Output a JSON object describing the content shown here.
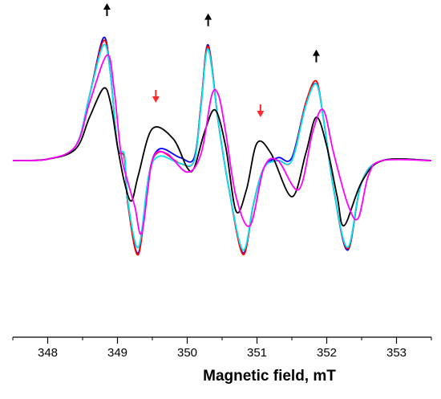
{
  "chart_data": {
    "type": "line",
    "title": "",
    "xlabel": "Magnetic field, mT",
    "ylabel": "",
    "xlim": [
      347.5,
      353.5
    ],
    "ylim": [
      -1.0,
      1.0
    ],
    "x_ticks": [
      348,
      349,
      350,
      351,
      352,
      353
    ],
    "y_axis_visible": false,
    "grid": false,
    "legend": "none",
    "series": [
      {
        "color": "#0000ff",
        "points": [
          [
            347.5,
            0.0
          ],
          [
            348.0,
            0.01
          ],
          [
            348.4,
            0.1
          ],
          [
            348.6,
            0.45
          ],
          [
            348.8,
            0.85
          ],
          [
            348.9,
            0.6
          ],
          [
            349.0,
            0.1
          ],
          [
            349.1,
            0.02
          ],
          [
            349.15,
            -0.3
          ],
          [
            349.3,
            -0.64
          ],
          [
            349.45,
            -0.1
          ],
          [
            349.6,
            0.08
          ],
          [
            349.9,
            0.02
          ],
          [
            350.1,
            0.02
          ],
          [
            350.2,
            0.4
          ],
          [
            350.3,
            0.8
          ],
          [
            350.45,
            0.25
          ],
          [
            350.6,
            -0.2
          ],
          [
            350.8,
            -0.64
          ],
          [
            350.95,
            -0.3
          ],
          [
            351.1,
            -0.05
          ],
          [
            351.3,
            0.02
          ],
          [
            351.5,
            0.02
          ],
          [
            351.7,
            0.4
          ],
          [
            351.85,
            0.53
          ],
          [
            351.95,
            0.3
          ],
          [
            352.1,
            -0.2
          ],
          [
            352.3,
            -0.62
          ],
          [
            352.5,
            -0.15
          ],
          [
            352.8,
            0.0
          ],
          [
            353.5,
            0.0
          ]
        ]
      },
      {
        "color": "#ff0000",
        "points": [
          [
            347.5,
            0.0
          ],
          [
            348.0,
            0.01
          ],
          [
            348.4,
            0.1
          ],
          [
            348.6,
            0.45
          ],
          [
            348.8,
            0.83
          ],
          [
            348.9,
            0.6
          ],
          [
            349.0,
            0.1
          ],
          [
            349.1,
            0.02
          ],
          [
            349.15,
            -0.3
          ],
          [
            349.3,
            -0.65
          ],
          [
            349.45,
            -0.1
          ],
          [
            349.6,
            0.06
          ],
          [
            349.9,
            -0.02
          ],
          [
            350.1,
            0.0
          ],
          [
            350.2,
            0.4
          ],
          [
            350.3,
            0.79
          ],
          [
            350.45,
            0.25
          ],
          [
            350.6,
            -0.2
          ],
          [
            350.8,
            -0.65
          ],
          [
            350.95,
            -0.3
          ],
          [
            351.1,
            -0.05
          ],
          [
            351.3,
            0.0
          ],
          [
            351.5,
            0.0
          ],
          [
            351.7,
            0.4
          ],
          [
            351.85,
            0.55
          ],
          [
            351.95,
            0.3
          ],
          [
            352.1,
            -0.2
          ],
          [
            352.3,
            -0.61
          ],
          [
            352.5,
            -0.15
          ],
          [
            352.8,
            0.0
          ],
          [
            353.5,
            0.0
          ]
        ]
      },
      {
        "color": "#00e5ee",
        "points": [
          [
            347.5,
            0.0
          ],
          [
            348.0,
            0.01
          ],
          [
            348.4,
            0.1
          ],
          [
            348.6,
            0.45
          ],
          [
            348.8,
            0.8
          ],
          [
            348.9,
            0.6
          ],
          [
            349.0,
            0.1
          ],
          [
            349.1,
            0.04
          ],
          [
            349.15,
            -0.28
          ],
          [
            349.3,
            -0.6
          ],
          [
            349.45,
            -0.1
          ],
          [
            349.6,
            0.03
          ],
          [
            349.9,
            -0.02
          ],
          [
            350.1,
            0.0
          ],
          [
            350.2,
            0.38
          ],
          [
            350.3,
            0.77
          ],
          [
            350.45,
            0.25
          ],
          [
            350.6,
            -0.2
          ],
          [
            350.8,
            -0.62
          ],
          [
            350.95,
            -0.3
          ],
          [
            351.1,
            -0.05
          ],
          [
            351.3,
            0.0
          ],
          [
            351.5,
            0.0
          ],
          [
            351.7,
            0.38
          ],
          [
            351.85,
            0.53
          ],
          [
            351.95,
            0.3
          ],
          [
            352.1,
            -0.2
          ],
          [
            352.3,
            -0.6
          ],
          [
            352.5,
            -0.15
          ],
          [
            352.8,
            0.0
          ],
          [
            353.5,
            0.0
          ]
        ]
      },
      {
        "color": "#000000",
        "points": [
          [
            347.5,
            0.0
          ],
          [
            348.0,
            0.01
          ],
          [
            348.4,
            0.08
          ],
          [
            348.6,
            0.3
          ],
          [
            348.8,
            0.5
          ],
          [
            348.9,
            0.4
          ],
          [
            349.0,
            0.1
          ],
          [
            349.1,
            -0.15
          ],
          [
            349.2,
            -0.28
          ],
          [
            349.3,
            -0.1
          ],
          [
            349.5,
            0.22
          ],
          [
            349.8,
            0.15
          ],
          [
            350.0,
            -0.05
          ],
          [
            350.1,
            -0.05
          ],
          [
            350.25,
            0.2
          ],
          [
            350.4,
            0.35
          ],
          [
            350.55,
            0.1
          ],
          [
            350.7,
            -0.35
          ],
          [
            350.85,
            -0.2
          ],
          [
            351.0,
            0.12
          ],
          [
            351.2,
            0.05
          ],
          [
            351.5,
            -0.25
          ],
          [
            351.7,
            0.05
          ],
          [
            351.85,
            0.3
          ],
          [
            352.0,
            0.1
          ],
          [
            352.15,
            -0.25
          ],
          [
            352.25,
            -0.45
          ],
          [
            352.5,
            -0.15
          ],
          [
            352.8,
            0.0
          ],
          [
            353.5,
            0.0
          ]
        ]
      },
      {
        "color": "#ff00ff",
        "points": [
          [
            347.5,
            0.0
          ],
          [
            348.0,
            0.01
          ],
          [
            348.4,
            0.1
          ],
          [
            348.6,
            0.4
          ],
          [
            348.85,
            0.73
          ],
          [
            348.95,
            0.5
          ],
          [
            349.05,
            0.05
          ],
          [
            349.15,
            -0.15
          ],
          [
            349.25,
            -0.32
          ],
          [
            349.35,
            -0.5
          ],
          [
            349.5,
            0.0
          ],
          [
            349.7,
            0.05
          ],
          [
            350.0,
            -0.08
          ],
          [
            350.2,
            0.05
          ],
          [
            350.35,
            0.45
          ],
          [
            350.45,
            0.45
          ],
          [
            350.55,
            0.2
          ],
          [
            350.7,
            -0.25
          ],
          [
            350.9,
            -0.45
          ],
          [
            351.1,
            -0.05
          ],
          [
            351.3,
            0.0
          ],
          [
            351.6,
            -0.2
          ],
          [
            351.8,
            0.2
          ],
          [
            351.95,
            0.35
          ],
          [
            352.1,
            0.05
          ],
          [
            352.3,
            -0.3
          ],
          [
            352.45,
            -0.4
          ],
          [
            352.6,
            -0.1
          ],
          [
            352.8,
            0.0
          ],
          [
            353.5,
            0.0
          ]
        ]
      }
    ],
    "annotations": [
      {
        "type": "arrow",
        "direction": "up",
        "x": 348.85,
        "y": 1.0,
        "color": "#000000"
      },
      {
        "type": "arrow",
        "direction": "up",
        "x": 350.3,
        "y": 0.93,
        "color": "#000000"
      },
      {
        "type": "arrow",
        "direction": "up",
        "x": 351.85,
        "y": 0.68,
        "color": "#000000"
      },
      {
        "type": "arrow",
        "direction": "down",
        "x": 349.55,
        "y": 0.4,
        "color": "#ff2a2a"
      },
      {
        "type": "arrow",
        "direction": "down",
        "x": 351.05,
        "y": 0.3,
        "color": "#ff2a2a"
      }
    ]
  }
}
